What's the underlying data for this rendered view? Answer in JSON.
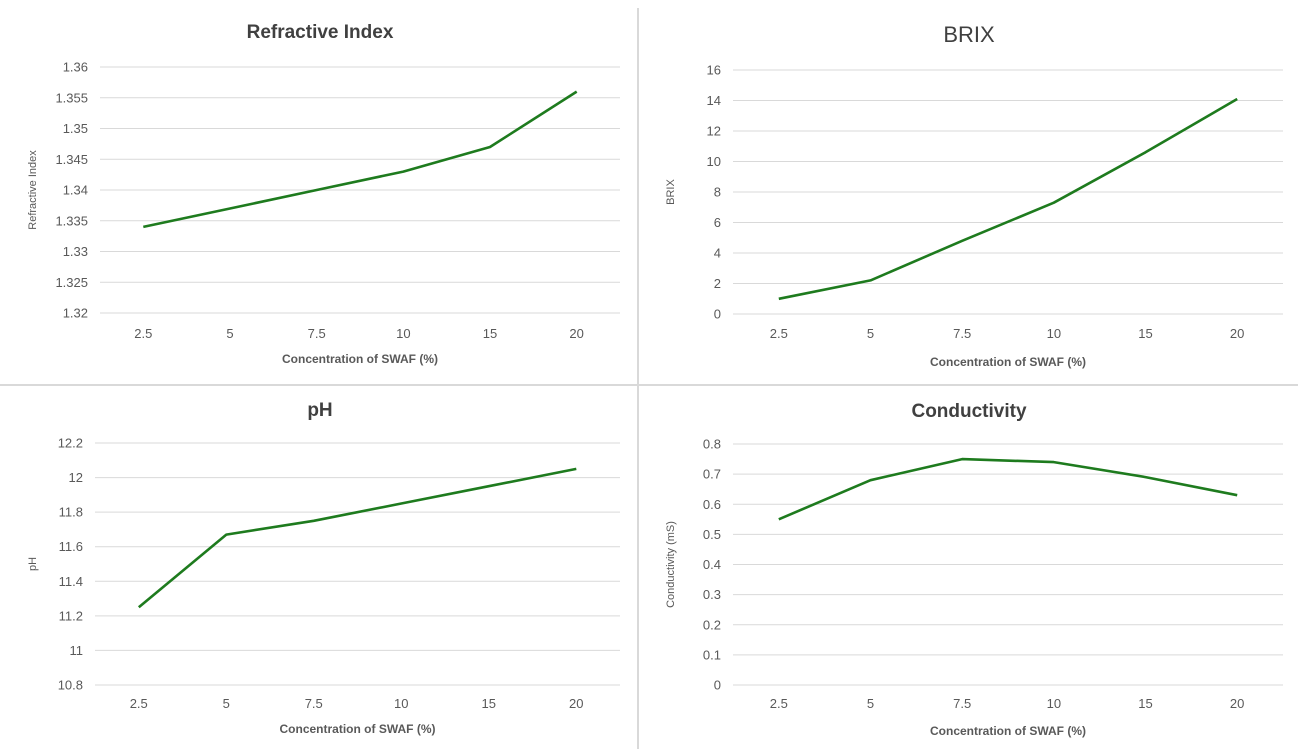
{
  "chart_data": [
    {
      "type": "line",
      "title": "Refractive Index",
      "xlabel": "Concentration of SWAF (%)",
      "ylabel": "Refractive Index",
      "categories": [
        "2.5",
        "5",
        "7.5",
        "10",
        "15",
        "20"
      ],
      "values": [
        1.334,
        1.337,
        1.34,
        1.343,
        1.347,
        1.356
      ],
      "yticks": [
        "1.32",
        "1.325",
        "1.33",
        "1.335",
        "1.34",
        "1.345",
        "1.35",
        "1.355",
        "1.36"
      ],
      "ylim": [
        1.32,
        1.36
      ],
      "grid": true,
      "color": "#1e7b1e"
    },
    {
      "type": "line",
      "title": "BRIX",
      "xlabel": "Concentration of SWAF (%)",
      "ylabel": "BRIX",
      "categories": [
        "2.5",
        "5",
        "7.5",
        "10",
        "15",
        "20"
      ],
      "values": [
        1.0,
        2.2,
        4.8,
        7.3,
        10.6,
        14.1
      ],
      "yticks": [
        "0",
        "2",
        "4",
        "6",
        "8",
        "10",
        "12",
        "14",
        "16"
      ],
      "ylim": [
        0,
        16
      ],
      "grid": true,
      "color": "#1e7b1e"
    },
    {
      "type": "line",
      "title": "pH",
      "xlabel": "Concentration of SWAF (%)",
      "ylabel": "pH",
      "categories": [
        "2.5",
        "5",
        "7.5",
        "10",
        "15",
        "20"
      ],
      "values": [
        11.25,
        11.67,
        11.75,
        11.85,
        11.95,
        12.05
      ],
      "yticks": [
        "10.8",
        "11",
        "11.2",
        "11.4",
        "11.6",
        "11.8",
        "12",
        "12.2"
      ],
      "ylim": [
        10.8,
        12.2
      ],
      "grid": true,
      "color": "#1e7b1e"
    },
    {
      "type": "line",
      "title": "Conductivity",
      "xlabel": "Concentration of SWAF (%)",
      "ylabel": "Conductivity (mS)",
      "categories": [
        "2.5",
        "5",
        "7.5",
        "10",
        "15",
        "20"
      ],
      "values": [
        0.55,
        0.68,
        0.75,
        0.74,
        0.69,
        0.63
      ],
      "yticks": [
        "0",
        "0.1",
        "0.2",
        "0.3",
        "0.4",
        "0.5",
        "0.6",
        "0.7",
        "0.8"
      ],
      "ylim": [
        0,
        0.8
      ],
      "grid": true,
      "color": "#1e7b1e"
    }
  ]
}
